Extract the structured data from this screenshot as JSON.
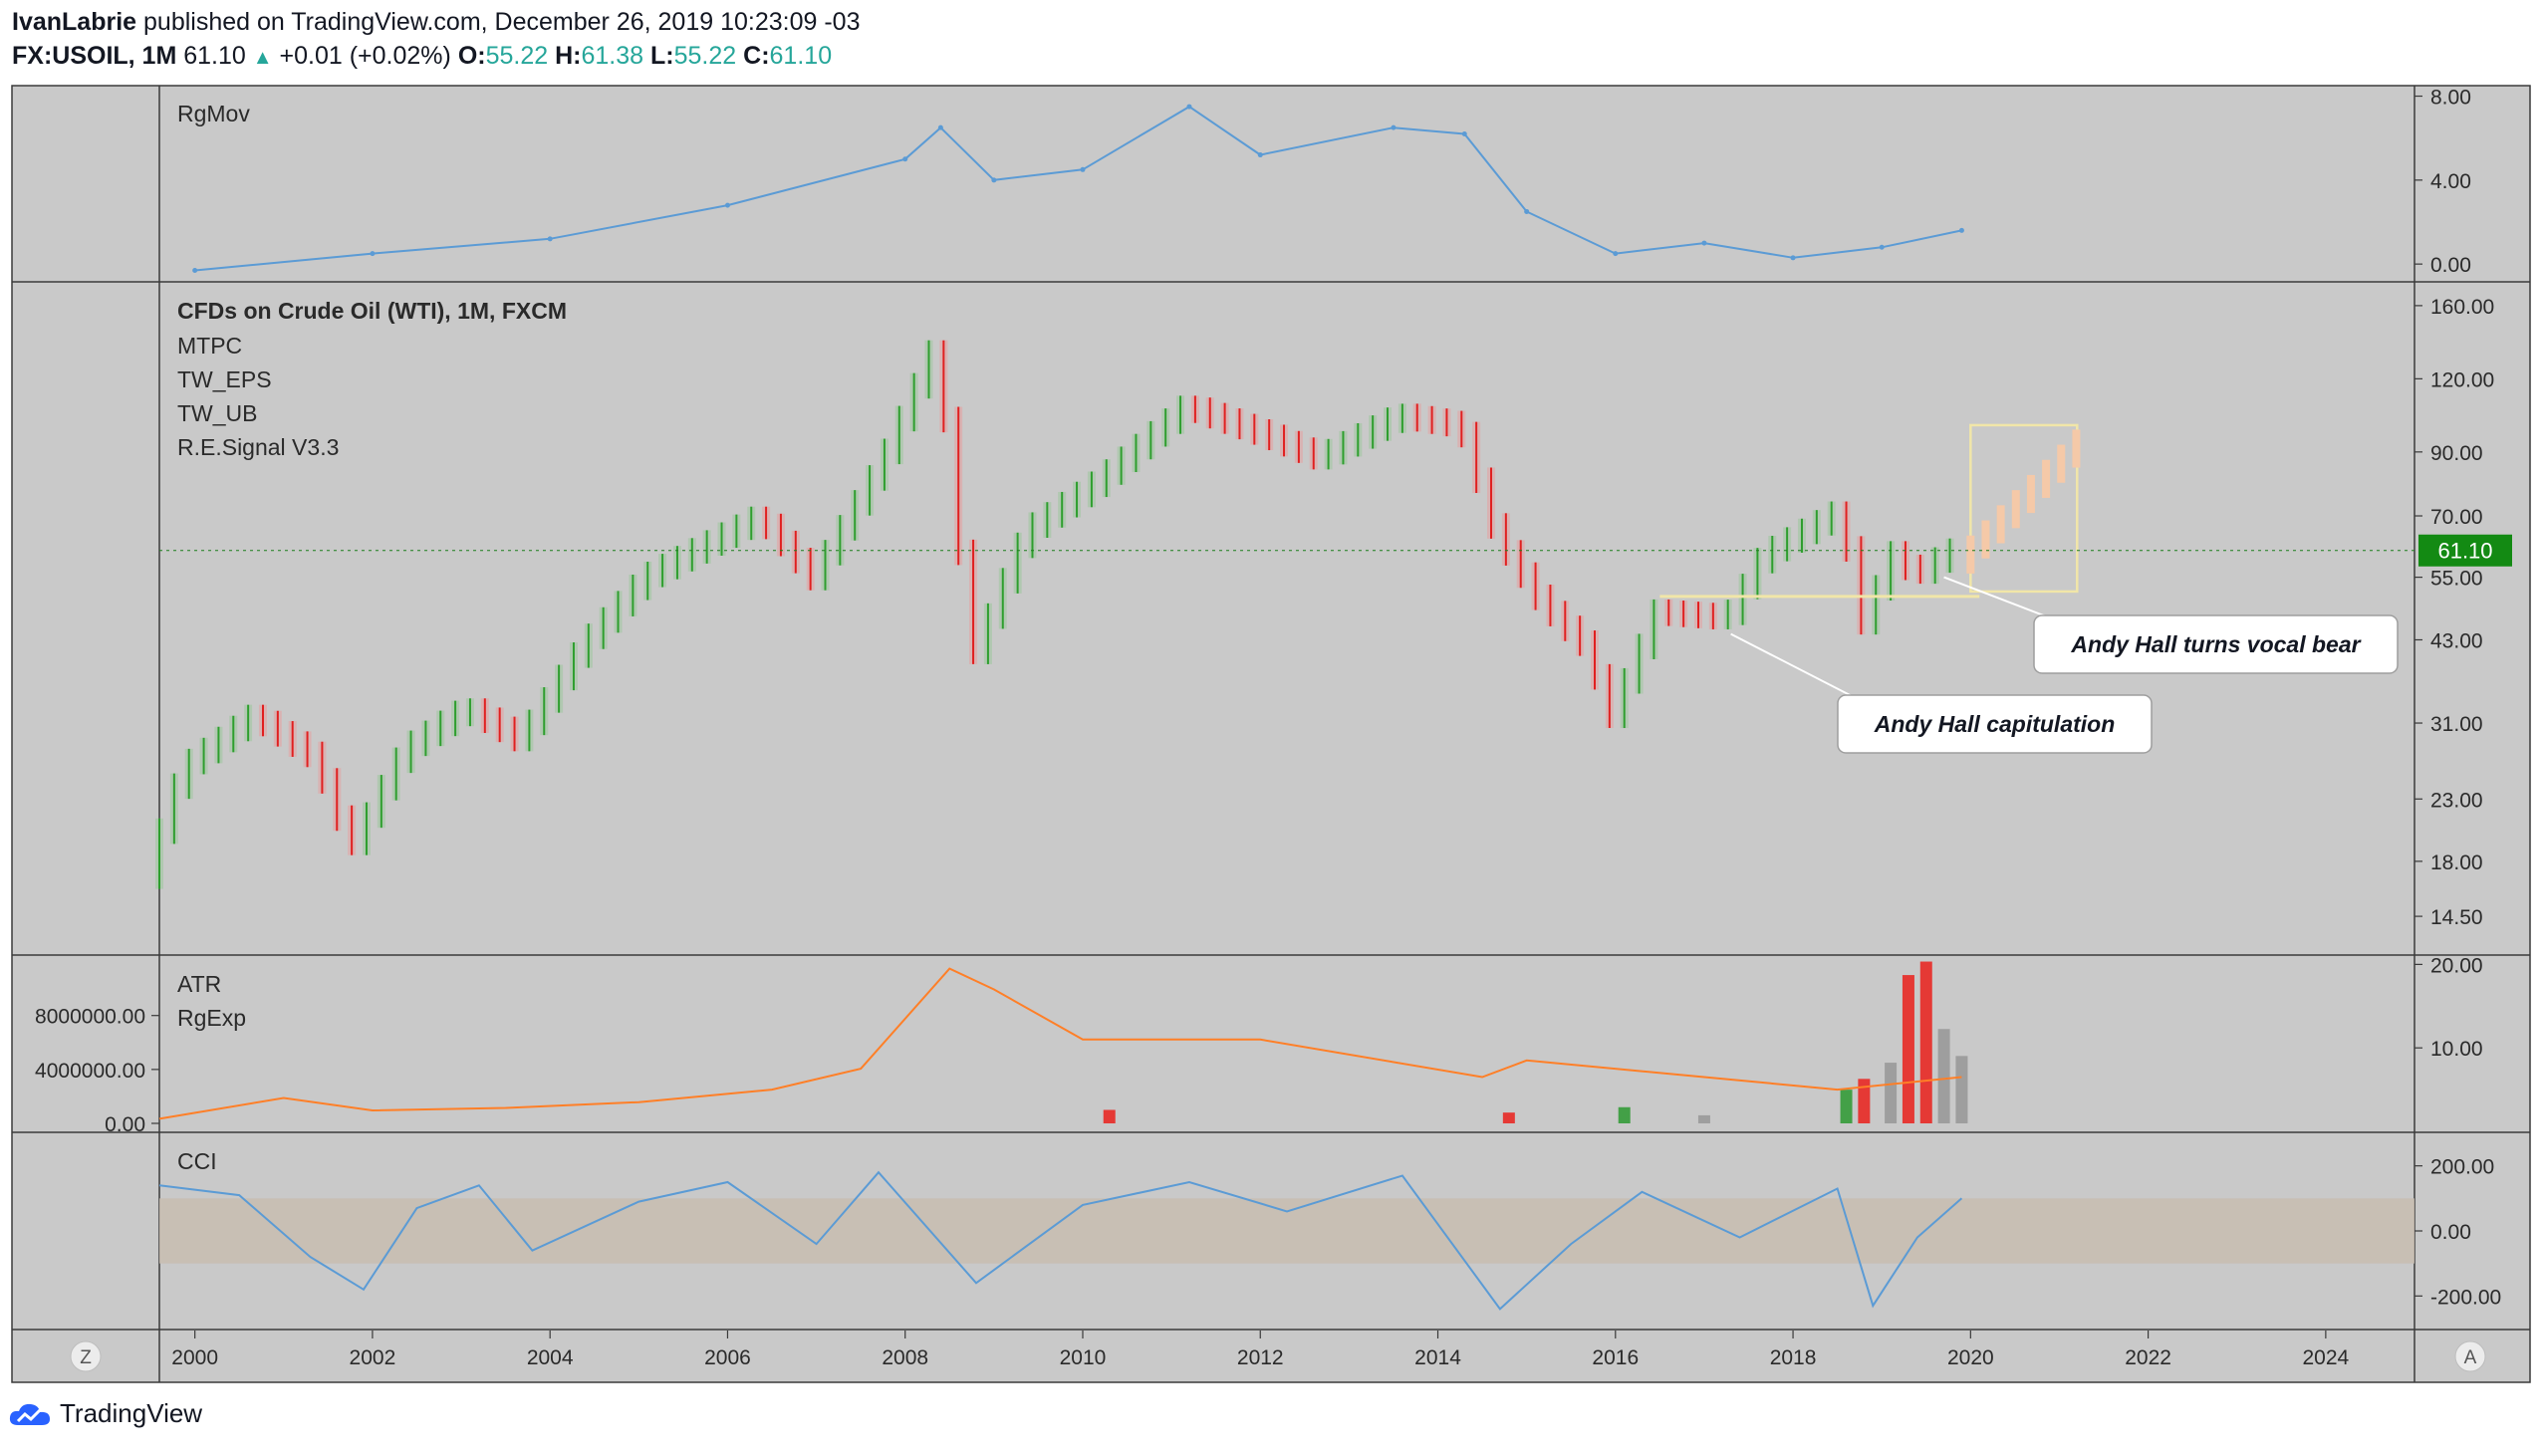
{
  "header": {
    "line1": {
      "author": "IvanLabrie",
      "rest": "published on TradingView.com, December 26, 2019 10:23:09 -03"
    },
    "line2": {
      "symbol": "FX:USOIL, 1M",
      "last": "61.10",
      "change": "+0.01 (+0.02%)",
      "o_label": "O:",
      "o_val": "55.22",
      "h_label": "H:",
      "h_val": "61.38",
      "l_label": "L:",
      "l_val": "55.22",
      "c_label": "C:",
      "c_val": "61.10"
    }
  },
  "footer": {
    "brand": "TradingView"
  },
  "chart_data": [
    {
      "type": "line",
      "panel": "rgmov",
      "labels": [
        "RgMov"
      ],
      "y_ticks": [
        "8.00",
        "4.00",
        "0.00"
      ],
      "ylim": [
        -0.8,
        8.5
      ],
      "x": [
        2000,
        2002,
        2004,
        2006,
        2008,
        2008.4,
        2009,
        2010,
        2011.2,
        2012,
        2013.5,
        2014.3,
        2015,
        2016,
        2017,
        2018,
        2019,
        2019.9
      ],
      "values": [
        -0.3,
        0.5,
        1.2,
        2.8,
        5.0,
        6.5,
        4.0,
        4.5,
        7.5,
        5.2,
        6.5,
        6.2,
        2.5,
        0.5,
        1.0,
        0.3,
        0.8,
        1.6
      ],
      "color": "#5b9bd5"
    },
    {
      "type": "line",
      "panel": "price",
      "title": "CFDs on Crude Oil (WTI), 1M, FXCM",
      "labels": [
        "MTPC",
        "TW_EPS",
        "TW_UB",
        "R.E.Signal V3.3"
      ],
      "y_ticks": [
        "160.00",
        "120.00",
        "90.00",
        "70.00",
        "55.00",
        "43.00",
        "31.00",
        "23.00",
        "18.00",
        "14.50"
      ],
      "scale": "log",
      "last_price": "61.10",
      "x": [
        1999.6,
        2000,
        2000.8,
        2001.5,
        2001.9,
        2002.5,
        2003.2,
        2003.8,
        2004.5,
        2005.2,
        2006.5,
        2007.1,
        2007.9,
        2008.5,
        2008.9,
        2009.5,
        2010.3,
        2011.3,
        2012.3,
        2012.8,
        2013.7,
        2014.4,
        2014.8,
        2015.3,
        2015.8,
        2016.1,
        2016.6,
        2017.4,
        2017.8,
        2018.7,
        2018.9,
        2019.3,
        2019.5,
        2019.9
      ],
      "values": [
        17,
        26,
        32,
        27,
        19,
        28,
        33,
        29,
        42,
        55,
        70,
        55,
        88,
        140,
        40,
        66,
        80,
        108,
        95,
        88,
        104,
        100,
        65,
        50,
        42,
        32,
        48,
        47,
        60,
        72,
        45,
        62,
        55,
        61
      ],
      "annotations": [
        {
          "text": "Andy Hall capitulation",
          "x": 2017.3,
          "price": 44
        },
        {
          "text": "Andy Hall turns vocal bear",
          "x": 2019.7,
          "price": 55
        }
      ]
    },
    {
      "type": "bar",
      "panel": "atr",
      "labels": [
        "ATR",
        "RgExp"
      ],
      "y_ticks_left": [
        "8000000.00",
        "4000000.00",
        "0.00"
      ],
      "y_ticks_right": [
        "20.00",
        "10.00"
      ],
      "series": [
        {
          "type": "line",
          "x": [
            1999.6,
            2001,
            2002,
            2003.5,
            2005,
            2006.5,
            2007.5,
            2008.5,
            2009,
            2010,
            2012,
            2014.5,
            2015,
            2017,
            2018.5,
            2019.9
          ],
          "values": [
            1.5,
            4.0,
            2.5,
            2.8,
            3.5,
            5.0,
            7.5,
            19.5,
            17,
            11,
            11,
            6.5,
            8.5,
            6.5,
            5.0,
            6.5
          ],
          "color": "#ff7f27"
        },
        {
          "type": "bar",
          "x": [
            2010.3,
            2014.8,
            2016.1,
            2017.0,
            2018.6,
            2018.8,
            2019.1,
            2019.3,
            2019.5,
            2019.7,
            2019.9
          ],
          "values": [
            1000000,
            800000,
            1200000,
            600000,
            2500000,
            3300000,
            4500000,
            11000000,
            12000000,
            7000000,
            5000000
          ],
          "colors": [
            "#e53935",
            "#e53935",
            "#43a047",
            "#9e9e9e",
            "#43a047",
            "#e53935",
            "#9e9e9e",
            "#e53935",
            "#e53935",
            "#9e9e9e",
            "#9e9e9e"
          ]
        }
      ]
    },
    {
      "type": "line",
      "panel": "cci",
      "labels": [
        "CCI"
      ],
      "y_ticks": [
        "200.00",
        "0.00",
        "-200.00"
      ],
      "ylim": [
        -300,
        300
      ],
      "x": [
        1999.6,
        2000.5,
        2001.3,
        2001.9,
        2002.5,
        2003.2,
        2003.8,
        2005,
        2006,
        2007,
        2007.7,
        2008.8,
        2010,
        2011.2,
        2012.3,
        2013.6,
        2014.7,
        2015.5,
        2016.3,
        2017.4,
        2018.5,
        2018.9,
        2019.4,
        2019.9
      ],
      "values": [
        140,
        110,
        -80,
        -180,
        70,
        140,
        -60,
        90,
        150,
        -40,
        180,
        -160,
        80,
        150,
        60,
        170,
        -240,
        -40,
        120,
        -20,
        130,
        -230,
        -20,
        100
      ],
      "color": "#5b9bd5"
    }
  ],
  "x_axis": {
    "ticks": [
      "2000",
      "2002",
      "2004",
      "2006",
      "2008",
      "2010",
      "2012",
      "2014",
      "2016",
      "2018",
      "2020",
      "2022",
      "2024"
    ],
    "range": [
      1999.6,
      2025.0
    ],
    "left_button": "Z",
    "right_button": "A"
  }
}
